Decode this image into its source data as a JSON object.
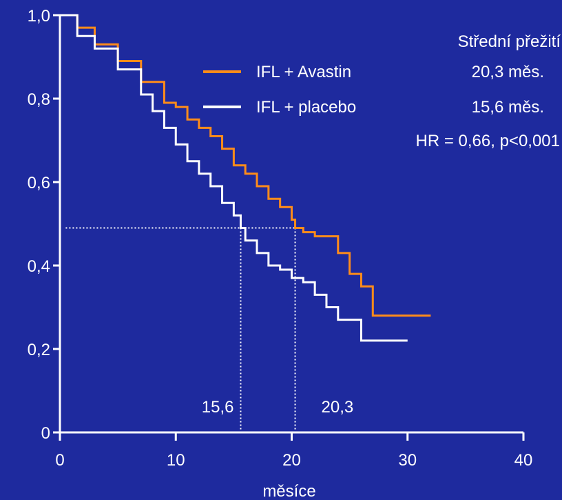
{
  "chart_data": {
    "type": "line",
    "title": "",
    "xlabel": "měsíce",
    "ylabel": "",
    "xlim": [
      0,
      40
    ],
    "ylim": [
      0,
      1
    ],
    "x_ticks": [
      0,
      10,
      20,
      30,
      40
    ],
    "x_tick_labels": [
      "0",
      "10",
      "20",
      "30",
      "40"
    ],
    "y_ticks": [
      0,
      0.2,
      0.4,
      0.6,
      0.8,
      1.0
    ],
    "y_tick_labels": [
      "0",
      "0,2",
      "0,4",
      "0,6",
      "0,8",
      "1,0"
    ],
    "legend_position": "top-right",
    "grid": false,
    "series": [
      {
        "name": "IFL + Avastin",
        "color": "#ff8c1a",
        "median_label": "20,3 měs.",
        "points": [
          [
            0,
            1.0
          ],
          [
            1.5,
            0.97
          ],
          [
            3,
            0.93
          ],
          [
            5,
            0.89
          ],
          [
            7,
            0.84
          ],
          [
            9,
            0.79
          ],
          [
            10,
            0.78
          ],
          [
            11,
            0.75
          ],
          [
            12,
            0.73
          ],
          [
            13,
            0.71
          ],
          [
            14,
            0.68
          ],
          [
            15,
            0.64
          ],
          [
            16,
            0.62
          ],
          [
            17,
            0.59
          ],
          [
            18,
            0.56
          ],
          [
            19,
            0.54
          ],
          [
            20,
            0.51
          ],
          [
            20.3,
            0.49
          ],
          [
            21,
            0.48
          ],
          [
            22,
            0.47
          ],
          [
            24,
            0.43
          ],
          [
            25,
            0.38
          ],
          [
            26,
            0.35
          ],
          [
            27,
            0.28
          ],
          [
            32,
            0.28
          ]
        ]
      },
      {
        "name": "IFL + placebo",
        "color": "#ffffff",
        "median_label": "15,6 měs.",
        "points": [
          [
            0,
            1.0
          ],
          [
            1.5,
            0.95
          ],
          [
            3,
            0.92
          ],
          [
            5,
            0.87
          ],
          [
            7,
            0.81
          ],
          [
            8,
            0.77
          ],
          [
            9,
            0.73
          ],
          [
            10,
            0.69
          ],
          [
            11,
            0.65
          ],
          [
            12,
            0.62
          ],
          [
            13,
            0.59
          ],
          [
            14,
            0.55
          ],
          [
            15,
            0.52
          ],
          [
            15.6,
            0.49
          ],
          [
            16,
            0.46
          ],
          [
            17,
            0.43
          ],
          [
            18,
            0.4
          ],
          [
            19,
            0.39
          ],
          [
            20,
            0.37
          ],
          [
            21,
            0.36
          ],
          [
            22,
            0.33
          ],
          [
            23,
            0.3
          ],
          [
            24,
            0.27
          ],
          [
            25,
            0.27
          ],
          [
            26,
            0.22
          ],
          [
            30,
            0.22
          ]
        ]
      }
    ],
    "legend_header": "Střední přežití",
    "hazard_ratio_text": "HR = 0,66, p<0,001",
    "median_reference_y": 0.49,
    "median_annotations": [
      {
        "label": "15,6",
        "x": 15.6,
        "color": "#ffffff"
      },
      {
        "label": "20,3",
        "x": 20.3,
        "color": "#ff8c1a"
      }
    ]
  }
}
